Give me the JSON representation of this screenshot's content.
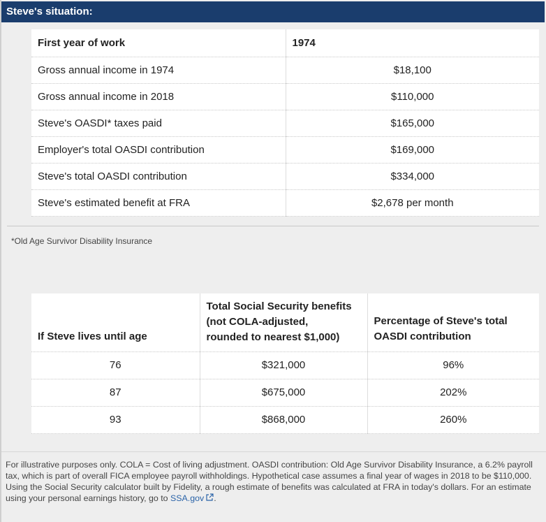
{
  "header": {
    "title": "Steve's situation:"
  },
  "situation_table": {
    "header": {
      "label": "First year of work",
      "value": "1974"
    },
    "rows": [
      {
        "label": "Gross annual income in 1974",
        "value": "$18,100"
      },
      {
        "label": "Gross annual income in 2018",
        "value": "$110,000"
      },
      {
        "label": "Steve's OASDI* taxes paid",
        "value": "$165,000"
      },
      {
        "label": "Employer's total OASDI contribution",
        "value": "$169,000"
      },
      {
        "label": "Steve's total OASDI contribution",
        "value": "$334,000"
      },
      {
        "label": "Steve's estimated benefit at FRA",
        "value": "$2,678 per month"
      }
    ]
  },
  "footnote": "*Old Age Survivor Disability Insurance",
  "benefits_table": {
    "columns": [
      "If Steve lives until age",
      "Total Social Security benefits\n(not COLA-adjusted,\nrounded to nearest $1,000)",
      "Percentage of Steve's total\nOASDI contribution"
    ],
    "rows": [
      {
        "age": "76",
        "benefits": "$321,000",
        "percentage": "96%"
      },
      {
        "age": "87",
        "benefits": "$675,000",
        "percentage": "202%"
      },
      {
        "age": "93",
        "benefits": "$868,000",
        "percentage": "260%"
      }
    ]
  },
  "disclaimer": {
    "text": "For illustrative purposes only. COLA = Cost of living adjustment. OASDI contribution: Old Age Survivor Disability Insurance, a 6.2% payroll tax, which is part of overall FICA employee payroll withholdings. Hypothetical case assumes a final year of wages in 2018 to be $110,000. Using the Social Security calculator built by Fidelity, a rough estimate of benefits was calculated at FRA in today's dollars. For an estimate using your personal earnings history, go to ",
    "link_text": "SSA.gov",
    "link_icon": "external-link-icon",
    "end": "."
  },
  "colors": {
    "header_bg": "#1a3d6d",
    "link": "#2a63a8",
    "page_bg": "#eeeeee"
  }
}
